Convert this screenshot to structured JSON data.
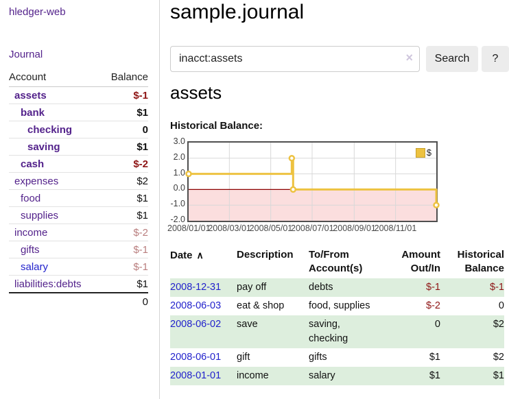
{
  "colors": {
    "accent_purple": "#53228b",
    "link_blue": "#2222cc",
    "negative_strong": "#8e1515",
    "negative_faded": "#b97e7e",
    "row_shade_green": "#ddeedd",
    "series_yellow": "#edc240",
    "negative_region_pink": "#fbdede",
    "zero_line_red": "#8b0000"
  },
  "sidebar": {
    "brand": "hledger-web",
    "nav": [
      {
        "label": "Journal"
      }
    ],
    "table_headers": {
      "account": "Account",
      "balance": "Balance"
    },
    "accounts": [
      {
        "name": "assets",
        "indent": 1,
        "matched": true,
        "balance": "$-1",
        "negative": "strong",
        "link": "visited"
      },
      {
        "name": "bank",
        "indent": 2,
        "matched": true,
        "balance": "$1",
        "negative": "none",
        "link": "visited"
      },
      {
        "name": "checking",
        "indent": 3,
        "matched": true,
        "balance": "0",
        "negative": "none",
        "link": "visited"
      },
      {
        "name": "saving",
        "indent": 3,
        "matched": true,
        "balance": "$1",
        "negative": "none",
        "link": "visited"
      },
      {
        "name": "cash",
        "indent": 2,
        "matched": true,
        "balance": "$-2",
        "negative": "strong",
        "link": "visited"
      },
      {
        "name": "expenses",
        "indent": 1,
        "matched": false,
        "balance": "$2",
        "negative": "none",
        "link": "visited"
      },
      {
        "name": "food",
        "indent": 2,
        "matched": false,
        "balance": "$1",
        "negative": "none",
        "link": "visited"
      },
      {
        "name": "supplies",
        "indent": 2,
        "matched": false,
        "balance": "$1",
        "negative": "none",
        "link": "visited"
      },
      {
        "name": "income",
        "indent": 1,
        "matched": false,
        "balance": "$-2",
        "negative": "faded",
        "link": "visited"
      },
      {
        "name": "gifts",
        "indent": 2,
        "matched": false,
        "balance": "$-1",
        "negative": "faded",
        "link": "visited"
      },
      {
        "name": "salary",
        "indent": 2,
        "matched": false,
        "balance": "$-1",
        "negative": "faded",
        "link": "unvisited"
      },
      {
        "name": "liabilities:debts",
        "indent": 1,
        "matched": false,
        "balance": "$1",
        "negative": "none",
        "link": "visited"
      }
    ],
    "total": "0"
  },
  "main": {
    "title": "sample.journal",
    "search": {
      "query": "inacct:assets",
      "clear_icon": "×",
      "search_label": "Search",
      "help_label": "?"
    },
    "account_heading": "assets"
  },
  "chart_data": {
    "type": "line",
    "step": true,
    "title": "Historical Balance:",
    "x_range": [
      "2008-01-01",
      "2008-12-31"
    ],
    "ylim": [
      -2,
      3
    ],
    "y_ticks": [
      3.0,
      2.0,
      1.0,
      0.0,
      -1.0,
      -2.0
    ],
    "x_tick_labels": [
      "2008/01/01",
      "2008/03/01",
      "2008/05/01",
      "2008/07/01",
      "2008/09/01",
      "2008/11/01"
    ],
    "grid": true,
    "legend_position": "top-right",
    "negative_region_color": "#fbdede",
    "zero_line_color": "#8b0000",
    "series": [
      {
        "name": "$",
        "color": "#edc240",
        "points": [
          [
            "2008-01-01",
            1
          ],
          [
            "2008-06-01",
            2
          ],
          [
            "2008-06-03",
            0
          ],
          [
            "2008-12-31",
            -1
          ]
        ]
      }
    ]
  },
  "register": {
    "sort_icon": "∧",
    "headers": [
      {
        "lines": [
          "Date"
        ],
        "align": "left",
        "sorted": true
      },
      {
        "lines": [
          "Description"
        ],
        "align": "left"
      },
      {
        "lines": [
          "To/From",
          "Account(s)"
        ],
        "align": "left"
      },
      {
        "lines": [
          "Amount",
          "Out/In"
        ],
        "align": "right"
      },
      {
        "lines": [
          "Historical",
          "Balance"
        ],
        "align": "right"
      }
    ],
    "rows": [
      {
        "date": "2008-12-31",
        "description": "pay off",
        "accounts": "debts",
        "amount": "$-1",
        "amount_negative": true,
        "balance": "$-1",
        "balance_negative": true
      },
      {
        "date": "2008-06-03",
        "description": "eat & shop",
        "accounts": "food, supplies",
        "amount": "$-2",
        "amount_negative": true,
        "balance": "0",
        "balance_negative": false
      },
      {
        "date": "2008-06-02",
        "description": "save",
        "accounts": "saving, checking",
        "amount": "0",
        "amount_negative": false,
        "balance": "$2",
        "balance_negative": false
      },
      {
        "date": "2008-06-01",
        "description": "gift",
        "accounts": "gifts",
        "amount": "$1",
        "amount_negative": false,
        "balance": "$2",
        "balance_negative": false
      },
      {
        "date": "2008-01-01",
        "description": "income",
        "accounts": "salary",
        "amount": "$1",
        "amount_negative": false,
        "balance": "$1",
        "balance_negative": false
      }
    ]
  }
}
